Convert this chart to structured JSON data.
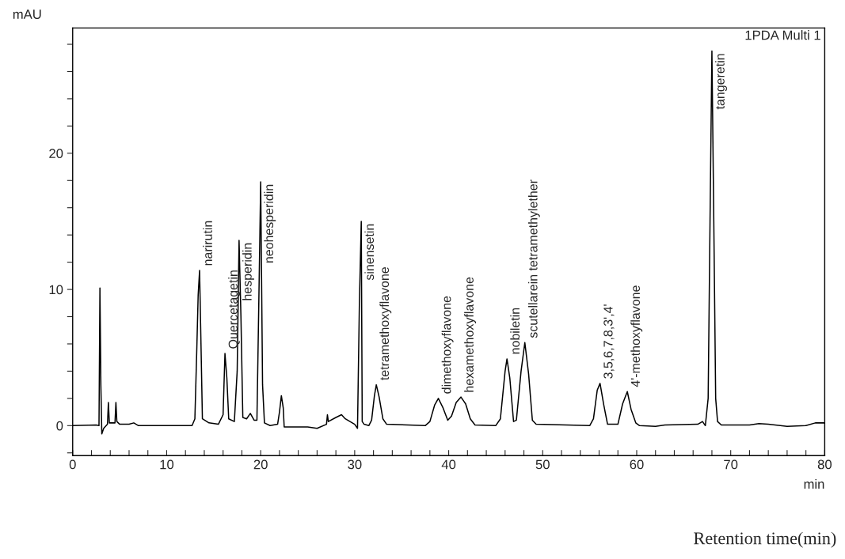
{
  "chart_data": {
    "type": "line",
    "xlabel": "min",
    "ylabel": "mAU",
    "xlim": [
      0,
      80
    ],
    "ylim": [
      -2.2,
      29.2
    ],
    "xticks": [
      0,
      {
        "value": 2,
        "label": null
      },
      {
        "value": 4,
        "label": null
      },
      {
        "value": 6,
        "label": null
      },
      {
        "value": 8,
        "label": null
      },
      10,
      {
        "value": 12,
        "label": null
      },
      {
        "value": 14,
        "label": null
      },
      {
        "value": 16,
        "label": null
      },
      {
        "value": 18,
        "label": null
      },
      20,
      {
        "value": 22,
        "label": null
      },
      {
        "value": 24,
        "label": null
      },
      {
        "value": 26,
        "label": null
      },
      {
        "value": 28,
        "label": null
      },
      30,
      {
        "value": 32,
        "label": null
      },
      {
        "value": 34,
        "label": null
      },
      {
        "value": 36,
        "label": null
      },
      {
        "value": 38,
        "label": null
      },
      40,
      {
        "value": 42,
        "label": null
      },
      {
        "value": 44,
        "label": null
      },
      {
        "value": 46,
        "label": null
      },
      {
        "value": 48,
        "label": null
      },
      50,
      {
        "value": 52,
        "label": null
      },
      {
        "value": 54,
        "label": null
      },
      {
        "value": 56,
        "label": null
      },
      {
        "value": 58,
        "label": null
      },
      60,
      {
        "value": 62,
        "label": null
      },
      {
        "value": 64,
        "label": null
      },
      {
        "value": 66,
        "label": null
      },
      {
        "value": 68,
        "label": null
      },
      70,
      {
        "value": 72,
        "label": null
      },
      {
        "value": 74,
        "label": null
      },
      {
        "value": 76,
        "label": null
      },
      {
        "value": 78,
        "label": null
      },
      80
    ],
    "yticks": [
      {
        "value": -2,
        "label": null
      },
      0,
      {
        "value": 2,
        "label": null
      },
      {
        "value": 4,
        "label": null
      },
      {
        "value": 6,
        "label": null
      },
      {
        "value": 8,
        "label": null
      },
      10,
      {
        "value": 12,
        "label": null
      },
      {
        "value": 14,
        "label": null
      },
      {
        "value": 16,
        "label": null
      },
      {
        "value": 18,
        "label": null
      },
      20,
      {
        "value": 22,
        "label": null
      },
      {
        "value": 24,
        "label": null
      },
      {
        "value": 26,
        "label": null
      },
      {
        "value": 28,
        "label": null
      }
    ],
    "grid": false,
    "legend": false,
    "marker": "none",
    "line_style": "solid",
    "series": [
      {
        "color": "#000000",
        "x": [
          0,
          2.5,
          2.8,
          2.9,
          3.0,
          3.1,
          3.3,
          3.7,
          3.8,
          3.9,
          4.5,
          4.6,
          4.7,
          5,
          6,
          6.5,
          7,
          9,
          10,
          12.7,
          13.0,
          13.2,
          13.35,
          13.5,
          13.65,
          13.8,
          14.5,
          15.5,
          16,
          16.2,
          16.4,
          16.6,
          17.2,
          17.5,
          17.7,
          17.9,
          18.1,
          18.5,
          18.9,
          19.3,
          19.6,
          19.8,
          20.0,
          20.2,
          20.4,
          21,
          21.8,
          22.0,
          22.2,
          22.4,
          22.5,
          25,
          26,
          27,
          27.1,
          27.2,
          28,
          28.6,
          29,
          30,
          30.3,
          30.5,
          30.7,
          30.8,
          31,
          31.5,
          31.8,
          32.1,
          32.3,
          32.6,
          33,
          33.4,
          37.5,
          38,
          38.5,
          38.9,
          39.4,
          39.9,
          40.3,
          40.8,
          41.3,
          41.8,
          42.3,
          42.8,
          45,
          45.5,
          46.0,
          46.2,
          46.5,
          46.9,
          47.2,
          47.7,
          48.1,
          48.5,
          48.9,
          49.3,
          55,
          55.4,
          55.8,
          56.1,
          56.5,
          56.9,
          58.0,
          58.5,
          59.0,
          59.4,
          59.9,
          60.3,
          62,
          63,
          66.5,
          67,
          67.3,
          67.6,
          67.8,
          68.0,
          68.2,
          68.4,
          68.6,
          69,
          72,
          73,
          74,
          76,
          78,
          79,
          80
        ],
        "values": [
          0,
          0.05,
          0,
          10.1,
          3.0,
          -0.6,
          -0.2,
          0.1,
          1.7,
          0.2,
          0.2,
          1.7,
          0.3,
          0.1,
          0.1,
          0.2,
          0,
          0,
          0,
          0,
          0.5,
          5.5,
          9.6,
          11.4,
          6,
          0.5,
          0.2,
          0.1,
          0.8,
          5.3,
          3.5,
          0.5,
          0.3,
          4,
          13.6,
          8,
          0.6,
          0.5,
          0.9,
          0.4,
          0.4,
          9,
          17.9,
          3,
          0.2,
          0,
          0.1,
          1.0,
          2.2,
          1.3,
          -0.1,
          -0.1,
          -0.2,
          0.1,
          0.8,
          0.3,
          0.6,
          0.8,
          0.5,
          0.1,
          -0.2,
          9,
          15.0,
          0.3,
          0.1,
          0,
          0.4,
          2.2,
          3.0,
          2.1,
          0.5,
          0.1,
          0,
          0.3,
          1.5,
          2.0,
          1.3,
          0.4,
          0.7,
          1.7,
          2.1,
          1.6,
          0.5,
          0.05,
          0,
          0.5,
          4,
          4.9,
          3.5,
          0.3,
          0.4,
          4,
          6.1,
          3.8,
          0.4,
          0.1,
          0,
          0.5,
          2.6,
          3.1,
          1.5,
          0.1,
          0.1,
          1.6,
          2.5,
          1.2,
          0.2,
          0,
          -0.05,
          0.05,
          0.1,
          0.3,
          0,
          2,
          15,
          27.5,
          15,
          2,
          0.3,
          0.05,
          0.05,
          0.15,
          0.1,
          -0.05,
          0,
          0.2,
          0.2
        ]
      }
    ],
    "annotations": [
      "1PDA Multi 1",
      "Retention time(min)",
      {
        "text": "narirutin",
        "x": 13.5,
        "y": 11.4
      },
      {
        "text": "Quercetagetin",
        "x": 16.2,
        "y": 5.3
      },
      {
        "text": "hesperidin",
        "x": 17.7,
        "y": 13.6
      },
      {
        "text": "neohesperidin",
        "x": 20.0,
        "y": 17.9
      },
      {
        "text": "sinensetin",
        "x": 30.7,
        "y": 15.0
      },
      {
        "text": "tetramethoxyflavone",
        "x": 32.3,
        "y": 3.0
      },
      {
        "text": "dimethoxyflavone",
        "x": 38.9,
        "y": 2.0
      },
      {
        "text": "hexamethoxyflavone",
        "x": 41.3,
        "y": 2.1
      },
      {
        "text": "nobiletin",
        "x": 46.2,
        "y": 4.9
      },
      {
        "text": "scutellarein tetramethylether",
        "x": 48.1,
        "y": 6.1
      },
      {
        "text": "3,5,6,7,8,3',4'",
        "x": 56.1,
        "y": 3.1
      },
      {
        "text": "4'-methoxyflavone",
        "x": 59.0,
        "y": 2.5
      },
      {
        "text": "tangeretin",
        "x": 68.0,
        "y": 27.5
      }
    ]
  }
}
